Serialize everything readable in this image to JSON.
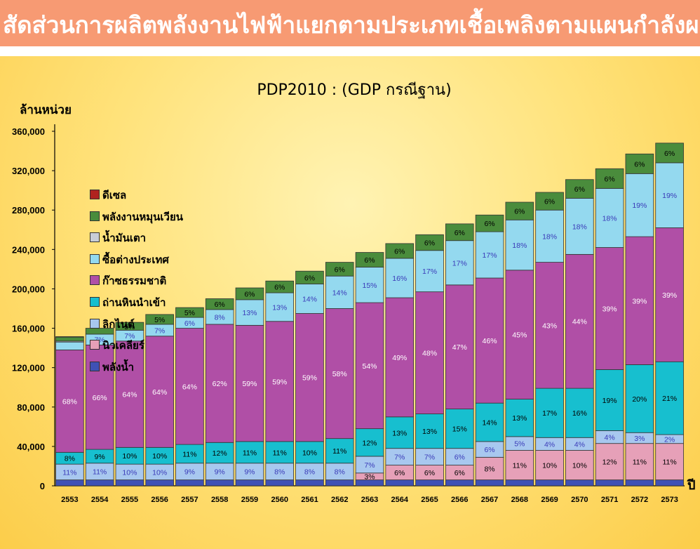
{
  "banner_title": "สัดส่วนการผลิตพลังงานไฟฟ้าแยกตามประเภทเชื้อเพลิงตามแผนกำลังผลิตไฟฟ้า",
  "colors": {
    "banner_bg": "#f79a73",
    "panel_bg": "#fde38a",
    "series": [
      "#3f51b5",
      "#e6a0b8",
      "#a8c8ef",
      "#17bfcf",
      "#b04fa6",
      "#94d9ef",
      "#c8cdd6",
      "#4a8c3c",
      "#b0231f"
    ]
  },
  "chart_data": {
    "type": "bar",
    "stacked": true,
    "title": "PDP2010 : (GDP กรณีฐาน)",
    "ylabel": "ล้านหน่วย",
    "xlabel": "ปี",
    "ylim": [
      0,
      360000
    ],
    "yticks": [
      "0",
      "40,000",
      "80,000",
      "120,000",
      "160,000",
      "200,000",
      "240,000",
      "280,000",
      "320,000",
      "360,000"
    ],
    "legend_position": "top-left",
    "categories": [
      "2553",
      "2554",
      "2555",
      "2556",
      "2557",
      "2558",
      "2559",
      "2560",
      "2561",
      "2562",
      "2563",
      "2564",
      "2565",
      "2566",
      "2567",
      "2568",
      "2569",
      "2570",
      "2571",
      "2572",
      "2573"
    ],
    "series": [
      {
        "name": "พลังน้ำ",
        "values": [
          6000,
          6000,
          6000,
          6000,
          6000,
          6000,
          6000,
          6000,
          6000,
          6000,
          6000,
          6000,
          6000,
          6000,
          6000,
          6000,
          6000,
          6000,
          6000,
          6000,
          6000
        ],
        "labels": []
      },
      {
        "name": "นิวเคลียร์",
        "values": [
          0,
          0,
          0,
          0,
          0,
          0,
          0,
          0,
          0,
          0,
          7000,
          15000,
          15000,
          15000,
          23000,
          30000,
          30000,
          30000,
          37000,
          37000,
          37000
        ],
        "labels": [
          "",
          "",
          "",
          "",
          "",
          "",
          "",
          "",
          "",
          "",
          "3%",
          "6%",
          "6%",
          "6%",
          "8%",
          "11%",
          "10%",
          "10%",
          "12%",
          "11%",
          "11%"
        ]
      },
      {
        "name": "ลิกไนต์",
        "values": [
          16000,
          17000,
          16000,
          16000,
          17000,
          17000,
          17000,
          17000,
          17000,
          17000,
          17000,
          17000,
          17000,
          17000,
          16000,
          14000,
          13000,
          13000,
          13000,
          11000,
          9000
        ],
        "labels": [
          "11%",
          "11%",
          "10%",
          "10%",
          "9%",
          "9%",
          "9%",
          "8%",
          "8%",
          "8%",
          "7%",
          "7%",
          "7%",
          "6%",
          "6%",
          "5%",
          "4%",
          "4%",
          "4%",
          "3%",
          "2%"
        ]
      },
      {
        "name": "ถ่านหินนำเข้า",
        "values": [
          12000,
          14000,
          17000,
          17000,
          19000,
          21000,
          22000,
          22000,
          22000,
          25000,
          28000,
          32000,
          35000,
          40000,
          39000,
          38000,
          50000,
          50000,
          62000,
          69000,
          74000
        ],
        "labels": [
          "8%",
          "9%",
          "10%",
          "10%",
          "11%",
          "12%",
          "11%",
          "11%",
          "10%",
          "11%",
          "12%",
          "13%",
          "13%",
          "15%",
          "14%",
          "13%",
          "17%",
          "16%",
          "19%",
          "20%",
          "21%"
        ]
      },
      {
        "name": "ก๊าซธรรมชาติ",
        "values": [
          104000,
          106000,
          108000,
          113000,
          118000,
          120000,
          118000,
          122000,
          130000,
          132000,
          128000,
          121000,
          124000,
          126000,
          127000,
          131000,
          128000,
          136000,
          124000,
          130000,
          136000
        ],
        "labels": [
          "68%",
          "66%",
          "64%",
          "64%",
          "64%",
          "62%",
          "59%",
          "59%",
          "59%",
          "58%",
          "54%",
          "49%",
          "48%",
          "47%",
          "46%",
          "45%",
          "43%",
          "44%",
          "39%",
          "39%",
          "39%"
        ]
      },
      {
        "name": "ซื้อต่างประเทศ",
        "values": [
          8000,
          11000,
          11000,
          12000,
          11000,
          15000,
          26000,
          29000,
          30000,
          33000,
          36000,
          40000,
          42000,
          45000,
          47000,
          51000,
          53000,
          57000,
          60000,
          64000,
          66000
        ],
        "labels": [
          "",
          "7%",
          "7%",
          "7%",
          "6%",
          "8%",
          "13%",
          "13%",
          "14%",
          "14%",
          "15%",
          "16%",
          "17%",
          "17%",
          "17%",
          "18%",
          "18%",
          "18%",
          "18%",
          "19%",
          "19%"
        ]
      },
      {
        "name": "น้ำมันเตา",
        "values": [
          1000,
          0,
          0,
          0,
          0,
          0,
          0,
          0,
          0,
          0,
          0,
          0,
          0,
          0,
          0,
          0,
          0,
          0,
          0,
          0,
          0
        ],
        "labels": []
      },
      {
        "name": "พลังงานหมุนเวียน",
        "values": [
          4000,
          6000,
          8000,
          10000,
          10000,
          11000,
          12000,
          12000,
          13000,
          14000,
          15000,
          15000,
          16000,
          17000,
          17000,
          18000,
          18000,
          19000,
          20000,
          20000,
          20000
        ],
        "labels": [
          "",
          "",
          "5%",
          "5%",
          "5%",
          "6%",
          "6%",
          "6%",
          "6%",
          "6%",
          "6%",
          "6%",
          "6%",
          "6%",
          "6%",
          "6%",
          "6%",
          "6%",
          "6%",
          "6%",
          "6%"
        ]
      },
      {
        "name": "ดีเซล",
        "values": [
          500,
          0,
          0,
          0,
          0,
          0,
          0,
          0,
          0,
          0,
          0,
          0,
          0,
          0,
          0,
          0,
          0,
          0,
          0,
          0,
          0
        ],
        "labels": []
      }
    ]
  }
}
